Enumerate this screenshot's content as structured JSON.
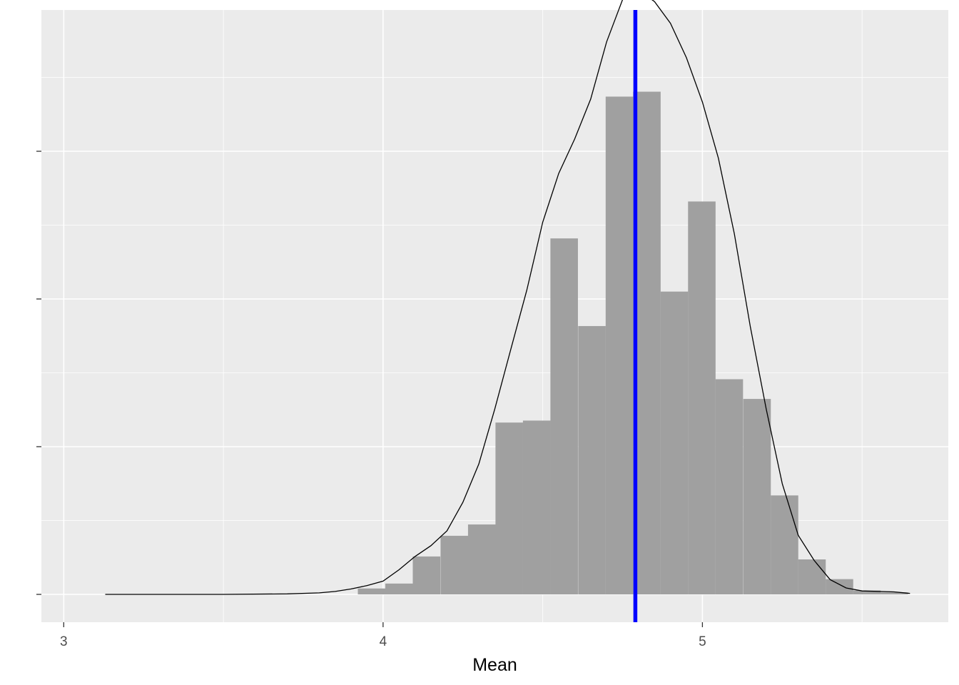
{
  "chart_data": {
    "type": "bar",
    "subtype": "histogram-with-density",
    "title": "",
    "xlabel": "Mean",
    "ylabel": "",
    "xlim": [
      2.93,
      5.77
    ],
    "ylim": [
      0,
      1.18
    ],
    "x_ticks": [
      3,
      4,
      5
    ],
    "x_tick_labels": [
      "3",
      "4",
      "5"
    ],
    "y_ticks": [
      0,
      0.3,
      0.6,
      0.9
    ],
    "y_tick_labels_shown": false,
    "grid": true,
    "background": "#ebebeb",
    "bar_color": "#a0a0a0",
    "bin_width": 0.0862,
    "bin_starts": [
      3.921,
      4.007,
      4.093,
      4.18,
      4.266,
      4.352,
      4.438,
      4.524,
      4.611,
      4.697,
      4.783,
      4.869,
      4.955,
      5.041,
      5.128,
      5.214,
      5.3,
      5.386,
      5.472,
      5.558
    ],
    "bar_values": [
      0.012,
      0.022,
      0.077,
      0.119,
      0.142,
      0.349,
      0.353,
      0.723,
      0.545,
      1.011,
      1.021,
      0.615,
      0.798,
      0.437,
      0.397,
      0.201,
      0.071,
      0.031,
      0.008,
      0.004
    ],
    "density_series": {
      "name": "density",
      "color": "#000000",
      "x": [
        3.13,
        3.5,
        3.7,
        3.8,
        3.85,
        3.9,
        3.95,
        4.0,
        4.05,
        4.1,
        4.15,
        4.2,
        4.25,
        4.3,
        4.35,
        4.4,
        4.45,
        4.5,
        4.55,
        4.6,
        4.65,
        4.7,
        4.75,
        4.78,
        4.8,
        4.85,
        4.9,
        4.95,
        5.0,
        5.05,
        5.1,
        5.15,
        5.2,
        5.25,
        5.3,
        5.35,
        5.4,
        5.45,
        5.5,
        5.6,
        5.65
      ],
      "y": [
        0.0,
        0.0,
        0.001,
        0.003,
        0.006,
        0.011,
        0.018,
        0.027,
        0.05,
        0.077,
        0.099,
        0.129,
        0.187,
        0.265,
        0.377,
        0.498,
        0.618,
        0.756,
        0.855,
        0.925,
        1.006,
        1.122,
        1.208,
        1.225,
        1.227,
        1.204,
        1.16,
        1.09,
        1.0,
        0.886,
        0.732,
        0.544,
        0.376,
        0.225,
        0.12,
        0.069,
        0.03,
        0.013,
        0.007,
        0.005,
        0.002
      ]
    },
    "vline": {
      "x": 4.79,
      "color": "#0000ff"
    }
  }
}
